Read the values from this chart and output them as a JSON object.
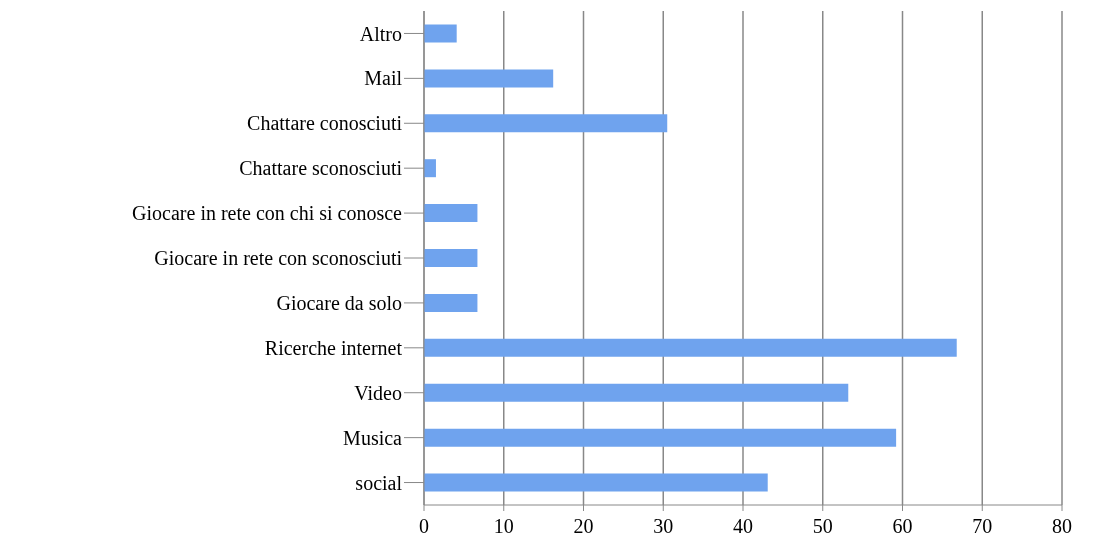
{
  "chart_data": {
    "type": "bar",
    "orientation": "horizontal",
    "categories": [
      "Altro",
      "Mail",
      "Chattare conosciuti",
      "Chattare sconosciuti",
      "Giocare in rete con chi si conosce",
      "Giocare in rete con sconosciuti",
      "Giocare da solo",
      "Ricerche internet",
      "Video",
      "Musica",
      "social"
    ],
    "values": [
      4.1,
      16.2,
      30.5,
      1.5,
      6.7,
      6.7,
      6.7,
      66.8,
      53.2,
      59.2,
      43.1
    ],
    "color": "#6fa3ee",
    "xlim": [
      0,
      80
    ],
    "xticks": [
      0,
      10,
      20,
      30,
      40,
      50,
      60,
      70,
      80
    ],
    "grid": "x"
  }
}
